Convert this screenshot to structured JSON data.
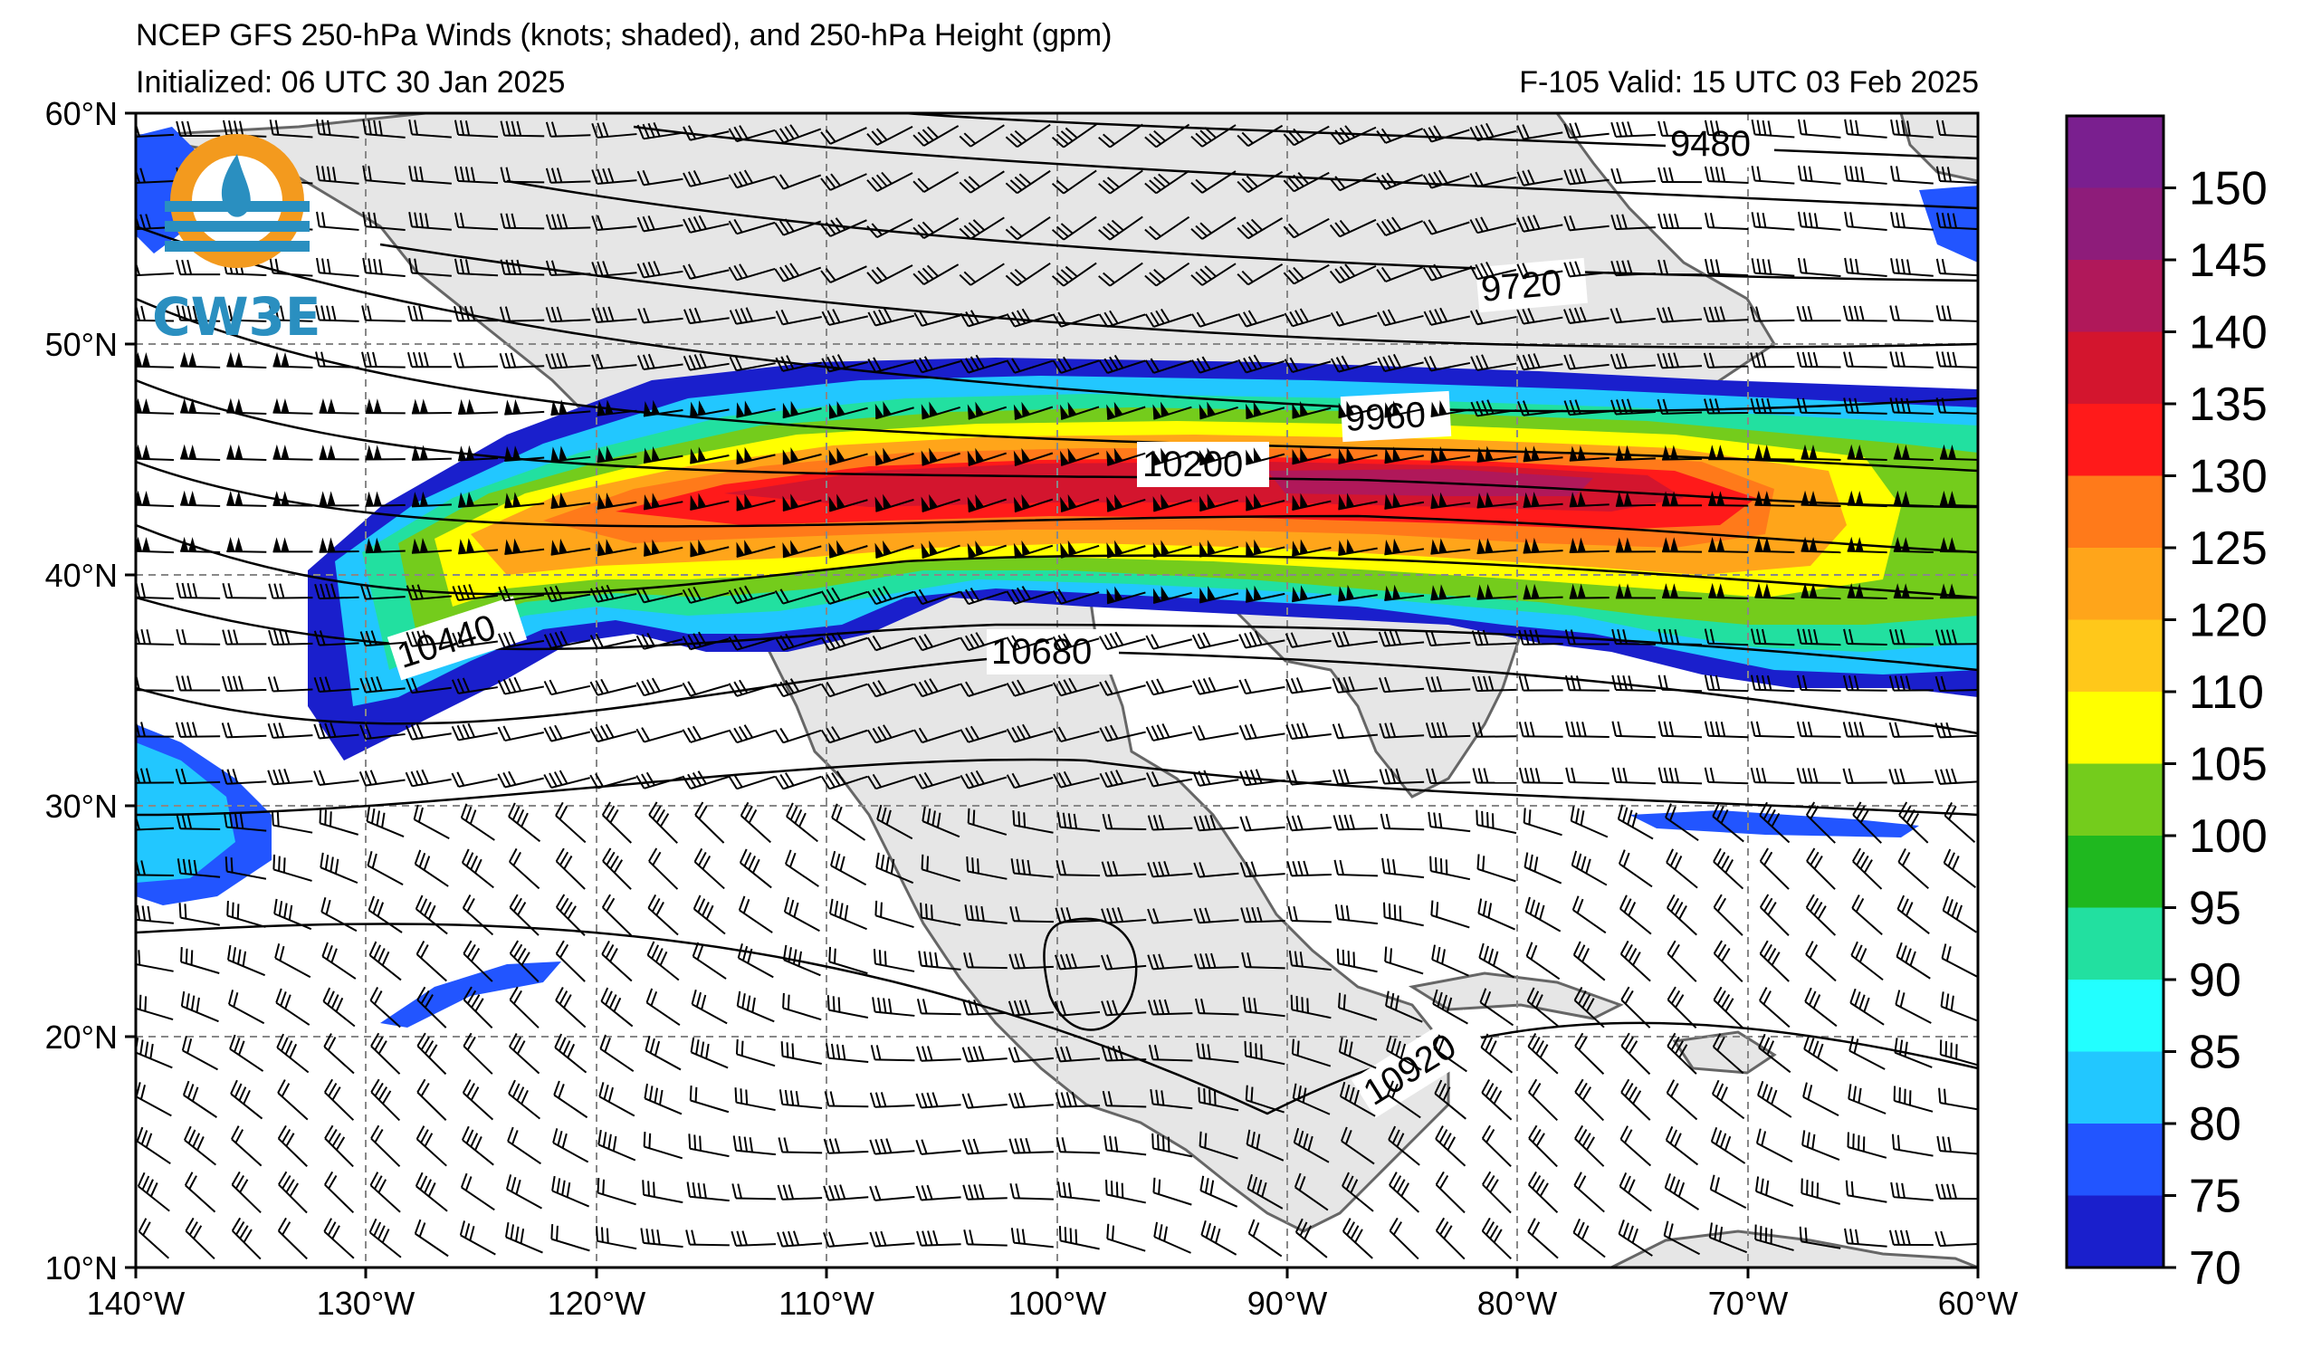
{
  "title_line1": "NCEP GFS 250-hPa Winds (knots; shaded), and 250-hPa Height (gpm)",
  "title_line2": "Initialized: 06 UTC 30 Jan 2025",
  "valid_line": "F-105  Valid: 15 UTC 03 Feb 2025",
  "logo_text": "CW3E",
  "lat_labels": [
    "60°N",
    "50°N",
    "40°N",
    "30°N",
    "20°N",
    "10°N"
  ],
  "lon_labels": [
    "140°W",
    "130°W",
    "120°W",
    "110°W",
    "100°W",
    "90°W",
    "80°W",
    "70°W",
    "60°W"
  ],
  "contour_labels": [
    "9480",
    "9720",
    "9960",
    "10200",
    "10440",
    "10680",
    "10920"
  ],
  "colorbar": {
    "labels": [
      "150",
      "145",
      "140",
      "135",
      "130",
      "125",
      "120",
      "110",
      "105",
      "100",
      "95",
      "90",
      "85",
      "80",
      "75",
      "70"
    ],
    "colors_top_to_bottom": [
      "#7a1f8f",
      "#8e1c7a",
      "#b0185a",
      "#d3152e",
      "#ff1a1a",
      "#ff7a1a",
      "#ffa51a",
      "#ffc81a",
      "#ffff00",
      "#74cc1c",
      "#1fb81f",
      "#22e0a0",
      "#22ffff",
      "#22c7ff",
      "#2255ff",
      "#1a1fcc"
    ]
  },
  "map": {
    "lon_range": [
      -140,
      -60
    ],
    "lat_range": [
      10,
      60
    ],
    "jet_colors": [
      "#1a1fcc",
      "#2255ff",
      "#22c7ff",
      "#22ffff",
      "#22e0a0",
      "#1fb81f",
      "#74cc1c",
      "#ffff00",
      "#ffc81a",
      "#ffa51a",
      "#ff7a1a",
      "#ff1a1a",
      "#d3152e",
      "#b0185a"
    ],
    "land_color": "#e6e6e6"
  }
}
